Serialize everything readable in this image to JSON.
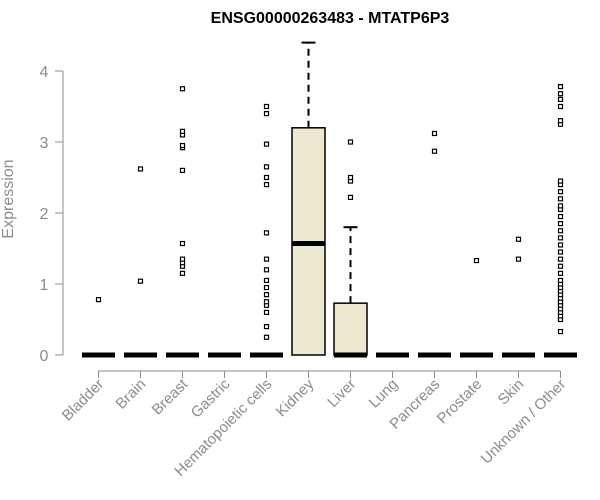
{
  "chart_data": {
    "type": "box",
    "title": "ENSG00000263483 - MTATP6P3",
    "xlabel": "",
    "ylabel": "Expression",
    "ylim": [
      0,
      4.4
    ],
    "yticks": [
      "0",
      "1",
      "2",
      "3",
      "4"
    ],
    "grid": false,
    "categories": [
      "Bladder",
      "Brain",
      "Breast",
      "Gastric",
      "Hematopoietic cells",
      "Kidney",
      "Liver",
      "Lung",
      "Pancreas",
      "Prostate",
      "Skin",
      "Unknown / Other"
    ],
    "boxes": [
      {
        "category": "Bladder",
        "q1": 0,
        "median": 0,
        "q3": 0,
        "whisker_low": 0,
        "whisker_high": 0,
        "outliers": [
          0.78
        ]
      },
      {
        "category": "Brain",
        "q1": 0,
        "median": 0,
        "q3": 0,
        "whisker_low": 0,
        "whisker_high": 0,
        "outliers": [
          1.04,
          2.62
        ]
      },
      {
        "category": "Breast",
        "q1": 0,
        "median": 0,
        "q3": 0,
        "whisker_low": 0,
        "whisker_high": 0,
        "outliers": [
          1.15,
          1.25,
          1.3,
          1.35,
          1.57,
          2.6,
          2.92,
          2.95,
          3.1,
          3.15,
          3.75
        ]
      },
      {
        "category": "Gastric",
        "q1": 0,
        "median": 0,
        "q3": 0,
        "whisker_low": 0,
        "whisker_high": 0,
        "outliers": []
      },
      {
        "category": "Hematopoietic cells",
        "q1": 0,
        "median": 0,
        "q3": 0,
        "whisker_low": 0,
        "whisker_high": 0,
        "outliers": [
          0.25,
          0.4,
          0.6,
          0.7,
          0.75,
          0.85,
          0.95,
          1.05,
          1.2,
          1.35,
          1.72,
          2.4,
          2.5,
          2.65,
          2.97,
          3.4,
          3.5
        ]
      },
      {
        "category": "Kidney",
        "q1": 0,
        "median": 1.57,
        "q3": 3.2,
        "whisker_low": 0,
        "whisker_high": 4.4,
        "outliers": []
      },
      {
        "category": "Liver",
        "q1": 0,
        "median": 0,
        "q3": 0.73,
        "whisker_low": 0,
        "whisker_high": 1.8,
        "outliers": [
          2.22,
          2.45,
          2.5,
          3.0
        ]
      },
      {
        "category": "Lung",
        "q1": 0,
        "median": 0,
        "q3": 0,
        "whisker_low": 0,
        "whisker_high": 0,
        "outliers": []
      },
      {
        "category": "Pancreas",
        "q1": 0,
        "median": 0,
        "q3": 0,
        "whisker_low": 0,
        "whisker_high": 0,
        "outliers": [
          2.87,
          3.12
        ]
      },
      {
        "category": "Prostate",
        "q1": 0,
        "median": 0,
        "q3": 0,
        "whisker_low": 0,
        "whisker_high": 0,
        "outliers": [
          1.33
        ]
      },
      {
        "category": "Skin",
        "q1": 0,
        "median": 0,
        "q3": 0,
        "whisker_low": 0,
        "whisker_high": 0,
        "outliers": [
          1.35,
          1.63
        ]
      },
      {
        "category": "Unknown / Other",
        "q1": 0,
        "median": 0,
        "q3": 0,
        "whisker_low": 0,
        "whisker_high": 0,
        "outliers": [
          0.33,
          0.5,
          0.55,
          0.6,
          0.65,
          0.7,
          0.75,
          0.8,
          0.85,
          0.9,
          0.95,
          1.0,
          1.05,
          1.15,
          1.25,
          1.35,
          1.45,
          1.55,
          1.65,
          1.75,
          1.85,
          1.95,
          2.05,
          2.1,
          2.2,
          2.3,
          2.4,
          2.45,
          3.25,
          3.3,
          3.5,
          3.6,
          3.68,
          3.78
        ]
      }
    ],
    "colors": {
      "box_fill": "#ede8d0",
      "box_stroke": "#000000",
      "axis": "#8c8c8c",
      "title": "#000000"
    }
  }
}
